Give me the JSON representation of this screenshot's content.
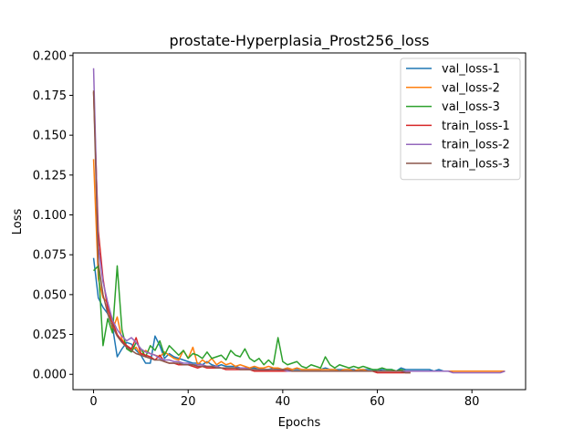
{
  "chart_data": {
    "type": "line",
    "title": "prostate-Hyperplasia_Prost256_loss",
    "xlabel": "Epochs",
    "ylabel": "Loss",
    "xlim": [
      -4.35,
      91.35
    ],
    "ylim": [
      -0.0096,
      0.2016
    ],
    "xticks": [
      0,
      20,
      40,
      60,
      80
    ],
    "yticks": [
      0.0,
      0.025,
      0.05,
      0.075,
      0.1,
      0.125,
      0.15,
      0.175,
      0.2
    ],
    "ytick_labels": [
      "0.000",
      "0.025",
      "0.050",
      "0.075",
      "0.100",
      "0.125",
      "0.150",
      "0.175",
      "0.200"
    ],
    "legend_position": "top-right",
    "grid": false,
    "series": [
      {
        "name": "val_loss-1",
        "color": "#1f77b4",
        "values": [
          0.073,
          0.048,
          0.042,
          0.038,
          0.03,
          0.011,
          0.016,
          0.02,
          0.019,
          0.015,
          0.012,
          0.007,
          0.007,
          0.024,
          0.018,
          0.01,
          0.013,
          0.011,
          0.01,
          0.009,
          0.008,
          0.007,
          0.007,
          0.006,
          0.008,
          0.006,
          0.005,
          0.006,
          0.005,
          0.005,
          0.005,
          0.004,
          0.004,
          0.004,
          0.004,
          0.003,
          0.003,
          0.003,
          0.004,
          0.003,
          0.003,
          0.004,
          0.003,
          0.003,
          0.003,
          0.003,
          0.003,
          0.003,
          0.003,
          0.004,
          0.003,
          0.003,
          0.003,
          0.003,
          0.003,
          0.003,
          0.002,
          0.003,
          0.003,
          0.003,
          0.002,
          0.003,
          0.003,
          0.003,
          0.002,
          0.004,
          0.003,
          0.003,
          0.003,
          0.003,
          0.003,
          0.003,
          0.002,
          0.003,
          0.002,
          0.002
        ]
      },
      {
        "name": "val_loss-2",
        "color": "#ff7f0e",
        "values": [
          0.135,
          0.06,
          0.048,
          0.045,
          0.028,
          0.036,
          0.022,
          0.018,
          0.015,
          0.017,
          0.012,
          0.015,
          0.013,
          0.012,
          0.011,
          0.014,
          0.012,
          0.01,
          0.009,
          0.015,
          0.01,
          0.017,
          0.006,
          0.009,
          0.007,
          0.01,
          0.006,
          0.008,
          0.006,
          0.007,
          0.005,
          0.006,
          0.005,
          0.004,
          0.005,
          0.004,
          0.004,
          0.005,
          0.004,
          0.004,
          0.003,
          0.004,
          0.003,
          0.004,
          0.003,
          0.003,
          0.003,
          0.003,
          0.003,
          0.003,
          0.003,
          0.003,
          0.002,
          0.003,
          0.003,
          0.002,
          0.003,
          0.003,
          0.002,
          0.002,
          0.002,
          0.002,
          0.002,
          0.002,
          0.002,
          0.002,
          0.002,
          0.002,
          0.002,
          0.002,
          0.002,
          0.002,
          0.002,
          0.002,
          0.002,
          0.002,
          0.002,
          0.002,
          0.002,
          0.002,
          0.002,
          0.002,
          0.002,
          0.002,
          0.002,
          0.002,
          0.002,
          0.002
        ]
      },
      {
        "name": "val_loss-3",
        "color": "#2ca02c",
        "values": [
          0.065,
          0.068,
          0.018,
          0.035,
          0.026,
          0.068,
          0.028,
          0.016,
          0.014,
          0.02,
          0.016,
          0.011,
          0.018,
          0.015,
          0.021,
          0.012,
          0.018,
          0.015,
          0.012,
          0.015,
          0.01,
          0.013,
          0.012,
          0.01,
          0.014,
          0.01,
          0.011,
          0.012,
          0.009,
          0.015,
          0.012,
          0.011,
          0.016,
          0.01,
          0.008,
          0.01,
          0.006,
          0.009,
          0.006,
          0.023,
          0.008,
          0.006,
          0.007,
          0.008,
          0.005,
          0.004,
          0.006,
          0.005,
          0.004,
          0.011,
          0.006,
          0.004,
          0.006,
          0.005,
          0.004,
          0.005,
          0.004,
          0.005,
          0.004,
          0.003,
          0.003,
          0.004,
          0.003,
          0.003,
          0.002,
          0.003,
          0.002,
          0.002
        ]
      },
      {
        "name": "train_loss-1",
        "color": "#d62728",
        "values": [
          0.177,
          0.09,
          0.06,
          0.041,
          0.033,
          0.025,
          0.021,
          0.018,
          0.016,
          0.023,
          0.013,
          0.012,
          0.011,
          0.009,
          0.012,
          0.008,
          0.007,
          0.007,
          0.006,
          0.006,
          0.006,
          0.005,
          0.004,
          0.005,
          0.004,
          0.004,
          0.004,
          0.004,
          0.003,
          0.003,
          0.003,
          0.003,
          0.003,
          0.003,
          0.002,
          0.002,
          0.002,
          0.002,
          0.002,
          0.002,
          0.002,
          0.002,
          0.002,
          0.002,
          0.002,
          0.002,
          0.002,
          0.002,
          0.002,
          0.002,
          0.002,
          0.002,
          0.002,
          0.002,
          0.002,
          0.002,
          0.002,
          0.002,
          0.002,
          0.002,
          0.001,
          0.001,
          0.001,
          0.001,
          0.001,
          0.001,
          0.001,
          0.001
        ]
      },
      {
        "name": "train_loss-2",
        "color": "#9467bd",
        "values": [
          0.192,
          0.08,
          0.058,
          0.045,
          0.034,
          0.028,
          0.024,
          0.021,
          0.023,
          0.02,
          0.016,
          0.014,
          0.013,
          0.012,
          0.01,
          0.009,
          0.009,
          0.008,
          0.008,
          0.007,
          0.007,
          0.006,
          0.006,
          0.006,
          0.005,
          0.005,
          0.005,
          0.004,
          0.004,
          0.004,
          0.004,
          0.004,
          0.004,
          0.003,
          0.003,
          0.003,
          0.003,
          0.003,
          0.003,
          0.003,
          0.003,
          0.002,
          0.002,
          0.002,
          0.002,
          0.002,
          0.002,
          0.002,
          0.002,
          0.002,
          0.002,
          0.002,
          0.002,
          0.002,
          0.002,
          0.002,
          0.002,
          0.002,
          0.002,
          0.002,
          0.002,
          0.002,
          0.002,
          0.002,
          0.002,
          0.002,
          0.002,
          0.002,
          0.002,
          0.002,
          0.002,
          0.002,
          0.002,
          0.002,
          0.002,
          0.002,
          0.001,
          0.001,
          0.001,
          0.001,
          0.001,
          0.001,
          0.001,
          0.001,
          0.001,
          0.001,
          0.001,
          0.002
        ]
      },
      {
        "name": "train_loss-3",
        "color": "#8c564b",
        "values": [
          0.178,
          0.07,
          0.05,
          0.038,
          0.03,
          0.024,
          0.02,
          0.017,
          0.015,
          0.013,
          0.012,
          0.011,
          0.01,
          0.009,
          0.009,
          0.008,
          0.007,
          0.007,
          0.007,
          0.006,
          0.006,
          0.006,
          0.005,
          0.005,
          0.005,
          0.005,
          0.004,
          0.004,
          0.004,
          0.004,
          0.004,
          0.003,
          0.003,
          0.003,
          0.003,
          0.003,
          0.003,
          0.003,
          0.003,
          0.003,
          0.003,
          0.003,
          0.002,
          0.002,
          0.002,
          0.002,
          0.002,
          0.002,
          0.002,
          0.002,
          0.002,
          0.002,
          0.002,
          0.002,
          0.002,
          0.002,
          0.002,
          0.002,
          0.002,
          0.002,
          0.002,
          0.002,
          0.002,
          0.002,
          0.002,
          0.002,
          0.001,
          0.001
        ]
      }
    ]
  }
}
